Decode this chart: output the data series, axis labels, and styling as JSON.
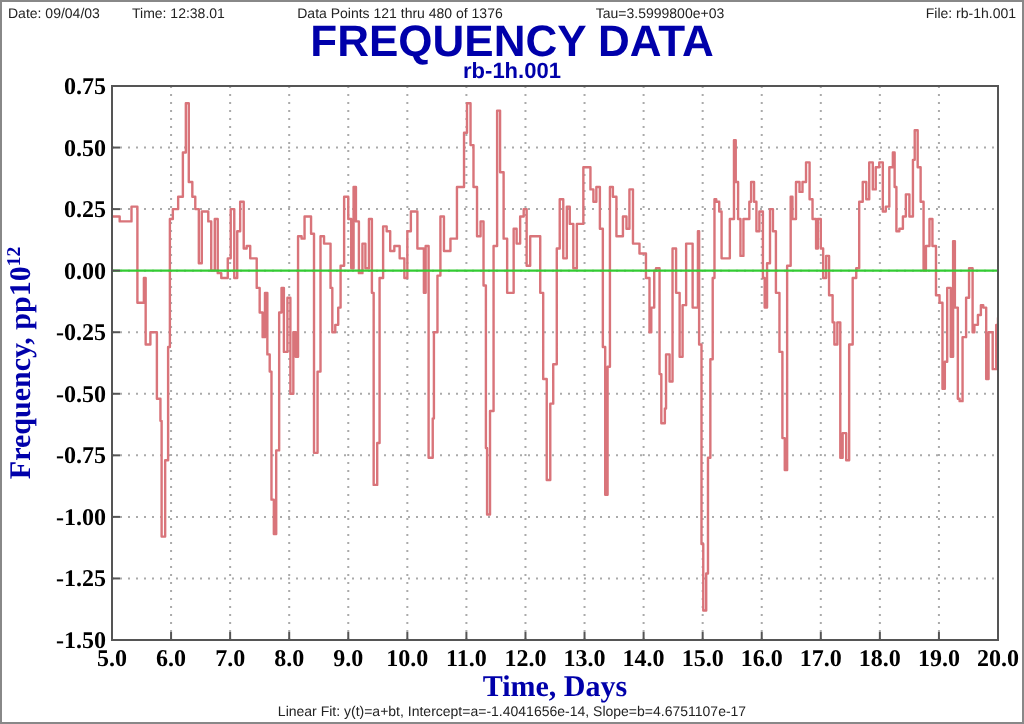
{
  "chart_data": {
    "type": "step",
    "title": "FREQUENCY DATA",
    "subtitle": "rb-1h.001",
    "xlabel": "Time, Days",
    "ylabel": "Frequency, pp10$^{12}$",
    "annotations": [
      "Date: 09/04/03",
      "Time: 12:38.01",
      "Data Points 121 thru 480 of 1376",
      "Tau=3.5999800e+03",
      "File: rb-1h.001",
      "Linear Fit: y(t)=a+bt, Intercept=a=-1.4041656e-14, Slope=b=4.6751107e-17"
    ],
    "xlim": [
      5,
      20
    ],
    "ylim": [
      -1.5,
      0.75
    ],
    "xticks": [
      {
        "value": 5,
        "label": "5.0"
      },
      {
        "value": 6,
        "label": "6.0"
      },
      {
        "value": 7,
        "label": "7.0"
      },
      {
        "value": 8,
        "label": "8.0"
      },
      {
        "value": 9,
        "label": "9.0"
      },
      {
        "value": 10,
        "label": "10.0"
      },
      {
        "value": 11,
        "label": "11.0"
      },
      {
        "value": 12,
        "label": "12.0"
      },
      {
        "value": 13,
        "label": "13.0"
      },
      {
        "value": 14,
        "label": "14.0"
      },
      {
        "value": 15,
        "label": "15.0"
      },
      {
        "value": 16,
        "label": "16.0"
      },
      {
        "value": 17,
        "label": "17.0"
      },
      {
        "value": 18,
        "label": "18.0"
      },
      {
        "value": 19,
        "label": "19.0"
      },
      {
        "value": 20,
        "label": "20.0"
      }
    ],
    "yticks": [
      {
        "value": -1.5,
        "label": "-1.50"
      },
      {
        "value": -1.25,
        "label": "-1.25"
      },
      {
        "value": -1,
        "label": "-1.00"
      },
      {
        "value": -0.75,
        "label": "-0.75"
      },
      {
        "value": -0.5,
        "label": "-0.50"
      },
      {
        "value": -0.25,
        "label": "-0.25"
      },
      {
        "value": 0,
        "label": "0.00"
      },
      {
        "value": 0.25,
        "label": "0.25"
      },
      {
        "value": 0.5,
        "label": "0.50"
      },
      {
        "value": 0.75,
        "label": "0.75"
      }
    ],
    "grid": true,
    "series": [
      {
        "color": "#d9747a",
        "x": [
          5.0,
          5.13,
          5.33,
          5.43,
          5.54,
          5.57,
          5.65,
          5.76,
          5.82,
          5.84,
          5.9,
          5.95,
          5.98,
          6.03,
          6.12,
          6.2,
          6.25,
          6.3,
          6.36,
          6.41,
          6.47,
          6.52,
          6.63,
          6.68,
          6.74,
          6.79,
          6.85,
          6.9,
          6.96,
          7.01,
          7.07,
          7.12,
          7.17,
          7.23,
          7.28,
          7.34,
          7.45,
          7.5,
          7.55,
          7.59,
          7.63,
          7.67,
          7.7,
          7.74,
          7.78,
          7.83,
          7.87,
          7.91,
          7.97,
          8.02,
          8.07,
          8.11,
          8.15,
          8.21,
          8.26,
          8.37,
          8.42,
          8.48,
          8.53,
          8.59,
          8.7,
          8.73,
          8.78,
          8.83,
          8.87,
          8.93,
          9.0,
          9.05,
          9.09,
          9.13,
          9.18,
          9.24,
          9.29,
          9.35,
          9.4,
          9.43,
          9.49,
          9.53,
          9.59,
          9.65,
          9.71,
          9.78,
          9.87,
          9.95,
          10.0,
          10.06,
          10.17,
          10.28,
          10.31,
          10.36,
          10.43,
          10.45,
          10.51,
          10.56,
          10.62,
          10.73,
          10.84,
          10.96,
          11.01,
          11.07,
          11.12,
          11.18,
          11.24,
          11.29,
          11.33,
          11.35,
          11.4,
          11.46,
          11.52,
          11.57,
          11.63,
          11.69,
          11.8,
          11.85,
          11.91,
          11.97,
          12.02,
          12.08,
          12.19,
          12.25,
          12.3,
          12.36,
          12.42,
          12.47,
          12.53,
          12.58,
          12.64,
          12.7,
          12.75,
          12.81,
          12.87,
          12.98,
          13.1,
          13.15,
          13.2,
          13.26,
          13.31,
          13.35,
          13.39,
          13.43,
          13.48,
          13.54,
          13.65,
          13.71,
          13.76,
          13.82,
          13.93,
          14.04,
          14.1,
          14.13,
          14.18,
          14.21,
          14.27,
          14.3,
          14.36,
          14.38,
          14.44,
          14.49,
          14.55,
          14.61,
          14.66,
          14.72,
          14.83,
          14.92,
          14.94,
          14.98,
          15.01,
          15.06,
          15.09,
          15.13,
          15.17,
          15.2,
          15.23,
          15.28,
          15.32,
          15.43,
          15.46,
          15.53,
          15.56,
          15.6,
          15.64,
          15.69,
          15.79,
          15.82,
          15.87,
          15.91,
          15.96,
          16.02,
          16.05,
          16.09,
          16.14,
          16.19,
          16.24,
          16.3,
          16.35,
          16.39,
          16.43,
          16.49,
          16.52,
          16.58,
          16.64,
          16.69,
          16.75,
          16.81,
          16.86,
          16.92,
          16.95,
          17.0,
          17.04,
          17.09,
          17.14,
          17.2,
          17.23,
          17.28,
          17.33,
          17.37,
          17.43,
          17.48,
          17.54,
          17.6,
          17.65,
          17.71,
          17.77,
          17.82,
          17.88,
          17.93,
          17.99,
          18.05,
          18.1,
          18.16,
          18.22,
          18.25,
          18.28,
          18.33,
          18.39,
          18.44,
          18.5,
          18.56,
          18.59,
          18.64,
          18.69,
          18.74,
          18.78,
          18.84,
          18.89,
          18.95,
          19.01,
          19.06,
          19.1,
          19.14,
          19.2,
          19.24,
          19.27,
          19.32,
          19.35,
          19.4,
          19.46,
          19.51,
          19.57,
          19.6,
          19.66,
          19.71,
          19.75,
          19.8,
          19.84,
          19.91,
          19.97,
          20.0
        ],
        "values": [
          0.22,
          0.2,
          0.26,
          -0.13,
          -0.03,
          -0.3,
          -0.25,
          -0.52,
          -0.61,
          -1.08,
          -0.77,
          -0.31,
          0.21,
          0.25,
          0.3,
          0.48,
          0.68,
          0.36,
          0.3,
          0.25,
          0.03,
          0.24,
          0.2,
          0.0,
          0.21,
          -0.01,
          -0.03,
          -0.03,
          0.05,
          0.25,
          -0.03,
          0.16,
          0.28,
          0.09,
          0.1,
          0.05,
          -0.07,
          -0.17,
          -0.27,
          -0.09,
          -0.34,
          -0.41,
          -0.93,
          -1.07,
          -0.73,
          -0.17,
          -0.07,
          -0.33,
          -0.11,
          -0.5,
          -0.25,
          -0.35,
          0.14,
          0.13,
          0.22,
          0.15,
          -0.74,
          -0.41,
          0.14,
          0.11,
          -0.07,
          -0.25,
          -0.22,
          -0.15,
          0.02,
          0.3,
          0.21,
          0.01,
          0.34,
          0.2,
          -0.01,
          0.11,
          0.01,
          0.21,
          -0.09,
          -0.87,
          -0.7,
          -0.03,
          0.18,
          0.16,
          0.08,
          0.1,
          0.05,
          -0.03,
          0.16,
          0.24,
          0.09,
          -0.09,
          0.1,
          -0.76,
          -0.6,
          -0.25,
          -0.02,
          0.22,
          0.08,
          0.13,
          0.34,
          0.56,
          0.68,
          0.51,
          0.34,
          0.14,
          0.2,
          -0.06,
          -0.72,
          -0.99,
          -0.57,
          0.1,
          0.65,
          0.4,
          0.13,
          -0.09,
          0.17,
          0.11,
          0.22,
          0.25,
          0.02,
          0.14,
          0.14,
          -0.09,
          -0.44,
          -0.85,
          -0.54,
          -0.38,
          0.09,
          0.29,
          0.05,
          0.26,
          0.19,
          0.01,
          0.19,
          0.42,
          0.33,
          0.28,
          0.34,
          0.17,
          -0.31,
          -0.91,
          -0.39,
          0.34,
          0.3,
          0.14,
          0.22,
          0.17,
          0.33,
          0.11,
          0.07,
          -0.03,
          -0.25,
          -0.15,
          0.0,
          0.01,
          -0.42,
          -0.62,
          -0.56,
          -0.34,
          -0.45,
          0.09,
          -0.09,
          -0.35,
          -0.14,
          0.11,
          -0.15,
          0.16,
          -0.3,
          -1.11,
          -1.38,
          -1.23,
          -0.76,
          -0.36,
          -0.03,
          0.29,
          0.28,
          0.24,
          0.05,
          0.05,
          0.21,
          0.53,
          0.36,
          0.21,
          0.06,
          0.21,
          0.28,
          0.36,
          0.28,
          0.16,
          0.24,
          -0.03,
          -0.15,
          0.03,
          0.25,
          0.16,
          -0.09,
          -0.33,
          -0.68,
          -0.81,
          0.02,
          0.3,
          0.21,
          0.36,
          0.32,
          0.36,
          0.44,
          0.29,
          0.21,
          0.09,
          0.21,
          0.09,
          -0.03,
          0.06,
          -0.1,
          -0.21,
          -0.3,
          -0.21,
          -0.76,
          -0.66,
          -0.77,
          -0.3,
          -0.03,
          0.01,
          0.28,
          0.36,
          0.29,
          0.44,
          0.33,
          0.42,
          0.44,
          0.24,
          0.26,
          0.42,
          0.48,
          0.34,
          0.16,
          0.17,
          0.22,
          0.31,
          0.22,
          0.45,
          0.57,
          0.42,
          0.28,
          0.0,
          0.1,
          0.21,
          0.1,
          -0.1,
          -0.13,
          -0.48,
          -0.37,
          -0.07,
          -0.35,
          0.12,
          -0.15,
          -0.52,
          -0.53,
          -0.27,
          -0.11,
          0.01,
          -0.25,
          -0.22,
          -0.18,
          -0.14,
          -0.15,
          -0.44,
          -0.25,
          -0.4,
          -0.22,
          -0.19
        ]
      },
      {
        "type": "line",
        "color": "#33cc33",
        "x": [
          5,
          20
        ],
        "values": [
          0,
          0
        ]
      }
    ]
  }
}
